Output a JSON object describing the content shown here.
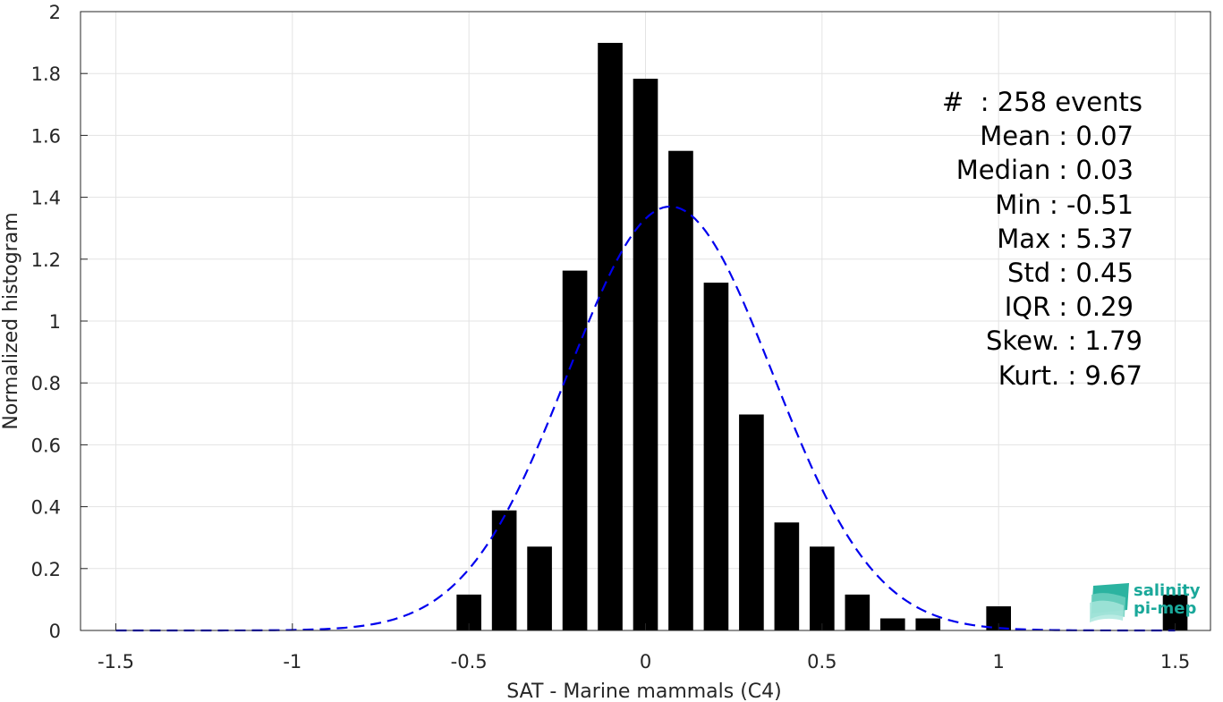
{
  "chart_data": {
    "type": "bar",
    "xlabel": "SAT - Marine mammals (C4)",
    "ylabel": "Normalized histogram",
    "xlim": [
      -1.6,
      1.6
    ],
    "ylim": [
      0,
      2
    ],
    "xticks": [
      -1.5,
      -1,
      -0.5,
      0,
      0.5,
      1,
      1.5
    ],
    "xtick_labels": [
      "-1.5",
      "-1",
      "-0.5",
      "0",
      "0.5",
      "1",
      "1.5"
    ],
    "yticks": [
      0,
      0.2,
      0.4,
      0.6,
      0.8,
      1,
      1.2,
      1.4,
      1.6,
      1.8,
      2
    ],
    "ytick_labels": [
      "0",
      "0.2",
      "0.4",
      "0.6",
      "0.8",
      "1",
      "1.2",
      "1.4",
      "1.6",
      "1.8",
      "2"
    ],
    "grid": true,
    "bar_color": "#000000",
    "bar_width": 0.07,
    "bins": [
      {
        "x": -0.5,
        "value": 0.116
      },
      {
        "x": -0.4,
        "value": 0.388
      },
      {
        "x": -0.3,
        "value": 0.271
      },
      {
        "x": -0.2,
        "value": 1.163
      },
      {
        "x": -0.1,
        "value": 1.899
      },
      {
        "x": 0.0,
        "value": 1.783
      },
      {
        "x": 0.1,
        "value": 1.55
      },
      {
        "x": 0.2,
        "value": 1.124
      },
      {
        "x": 0.3,
        "value": 0.698
      },
      {
        "x": 0.4,
        "value": 0.349
      },
      {
        "x": 0.5,
        "value": 0.271
      },
      {
        "x": 0.6,
        "value": 0.116
      },
      {
        "x": 0.7,
        "value": 0.039
      },
      {
        "x": 0.8,
        "value": 0.039
      },
      {
        "x": 1.0,
        "value": 0.078
      },
      {
        "x": 1.5,
        "value": 0.116
      }
    ],
    "fit_curve": {
      "style": "dashed",
      "color": "#0000ee",
      "mean": 0.07,
      "std": 0.29,
      "peak": 1.37,
      "x_range": [
        -1.5,
        1.5
      ]
    }
  },
  "stats": {
    "events": "#  : 258 events",
    "mean": "Mean : 0.07",
    "median": "Median : 0.03",
    "min": "Min : -0.51",
    "max": "Max : 5.37",
    "std": "Std : 0.45",
    "iqr": "IQR : 0.29",
    "skew": "Skew. : 1.79",
    "kurt": "Kurt. : 9.67"
  },
  "logo": {
    "line1": "salinity",
    "line2": "pi-mep",
    "color": "#1aa89a"
  }
}
